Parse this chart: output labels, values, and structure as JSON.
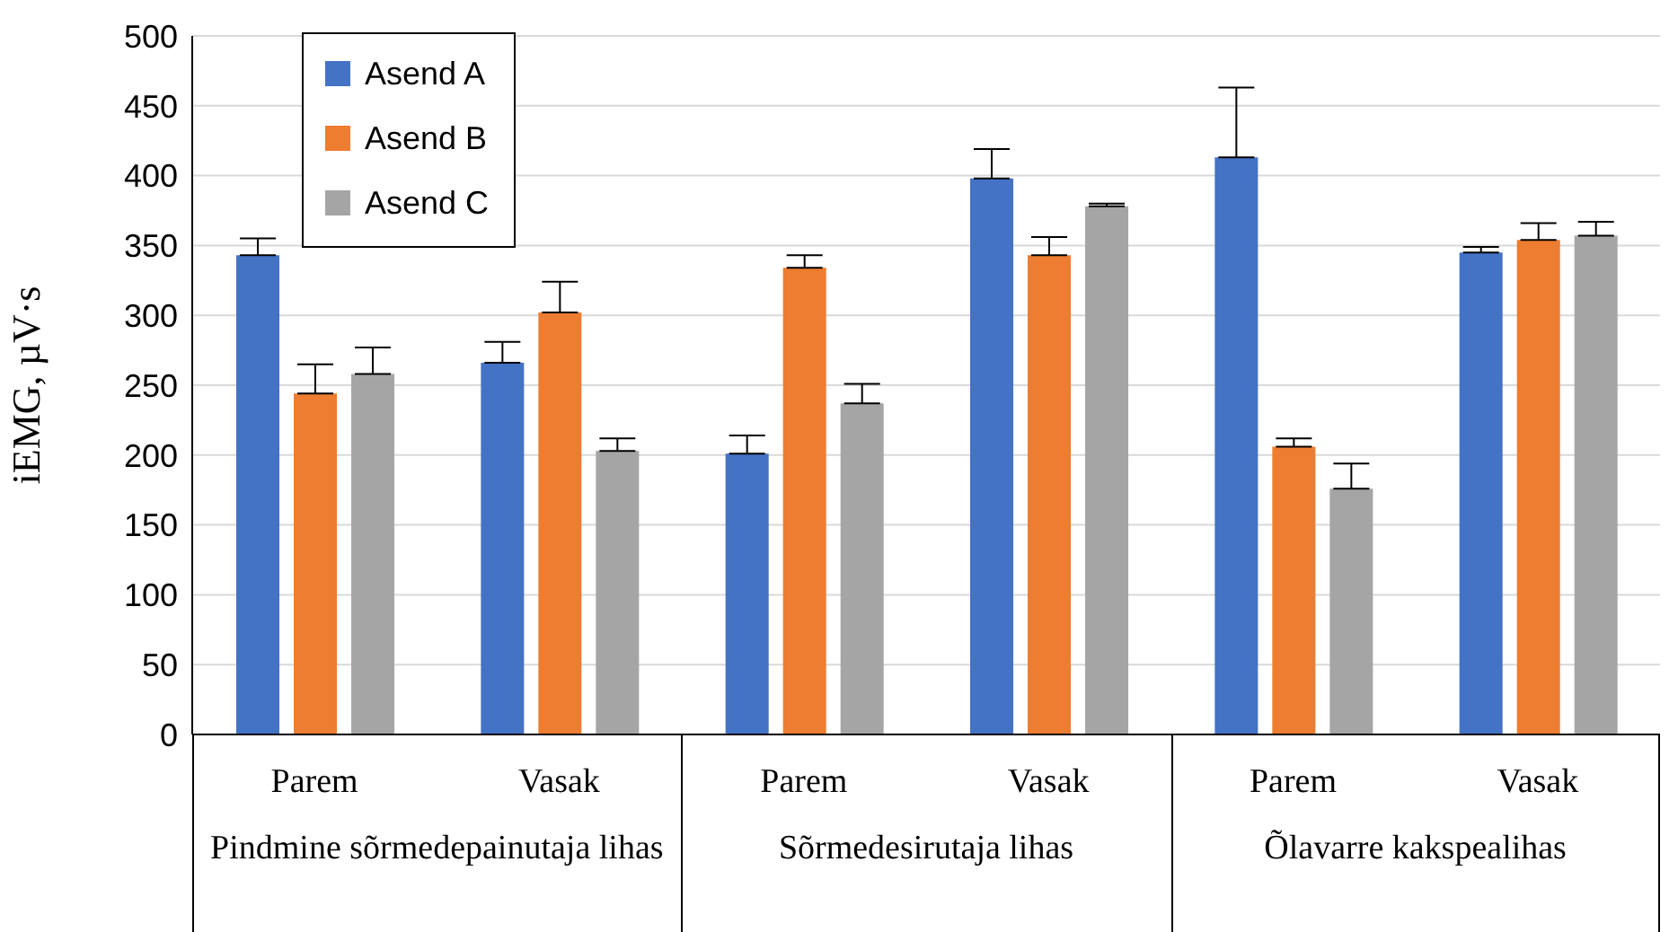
{
  "chart_data": {
    "type": "bar",
    "ylabel": "iEMG, µV·s",
    "categories": [
      "Parem",
      "Vasak",
      "Parem",
      "Vasak",
      "Parem",
      "Vasak"
    ],
    "annotations": [
      "Pindmine sõrmedepainutaja lihas",
      "Sõrmedesirutaja lihas",
      "Õlavarre kakspealihas"
    ],
    "series": [
      {
        "name": "Asend A",
        "color": "#4472c4",
        "values": [
          343,
          266,
          201,
          398,
          413,
          345
        ],
        "errors": [
          [
            343,
            355
          ],
          [
            266,
            281
          ],
          [
            201,
            214
          ],
          [
            398,
            419
          ],
          [
            413,
            463
          ],
          [
            345,
            349
          ]
        ]
      },
      {
        "name": "Asend B",
        "color": "#ed7d31",
        "values": [
          244,
          302,
          334,
          343,
          206,
          354
        ],
        "errors": [
          [
            244,
            265
          ],
          [
            302,
            324
          ],
          [
            334,
            343
          ],
          [
            343,
            356
          ],
          [
            206,
            212
          ],
          [
            354,
            366
          ]
        ]
      },
      {
        "name": "Asend C",
        "color": "#a5a5a5",
        "values": [
          258,
          203,
          237,
          378,
          176,
          357
        ],
        "errors": [
          [
            258,
            277
          ],
          [
            203,
            212
          ],
          [
            237,
            251
          ],
          [
            378,
            380
          ],
          [
            176,
            194
          ],
          [
            357,
            367
          ]
        ]
      }
    ],
    "ylim": [
      0,
      500
    ],
    "yticks": [
      0,
      50,
      100,
      150,
      200,
      250,
      300,
      350,
      400,
      450,
      500
    ],
    "grid": "y",
    "legend": "top left"
  }
}
